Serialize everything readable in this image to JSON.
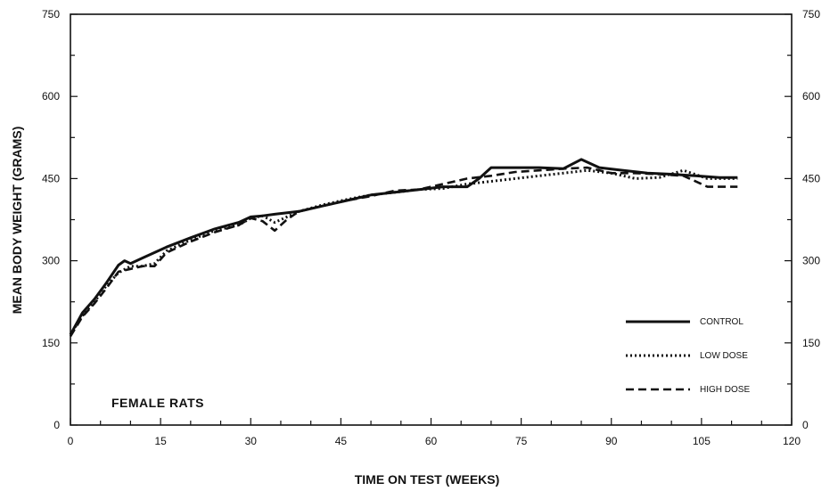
{
  "chart_data": {
    "type": "line",
    "xlabel": "TIME ON TEST (WEEKS)",
    "ylabel": "MEAN BODY WEIGHT (GRAMS)",
    "xlim": [
      0,
      120
    ],
    "ylim": [
      0,
      750
    ],
    "x_ticks": [
      "0",
      "15",
      "30",
      "45",
      "60",
      "75",
      "90",
      "105",
      "120"
    ],
    "y_ticks_left": [
      "0",
      "150",
      "300",
      "450",
      "600",
      "750"
    ],
    "y_ticks_right": [
      "0",
      "150",
      "300",
      "450",
      "600",
      "750"
    ],
    "annotation": "FEMALE RATS",
    "legend_position": "bottom-right",
    "grid": false,
    "series": [
      {
        "name": "CONTROL",
        "style": "solid",
        "x": [
          0,
          2,
          4,
          6,
          8,
          9,
          10,
          12,
          14,
          16,
          20,
          24,
          28,
          30,
          32,
          34,
          38,
          42,
          46,
          50,
          54,
          58,
          62,
          66,
          68,
          70,
          74,
          78,
          82,
          85,
          88,
          92,
          96,
          100,
          104,
          108,
          111
        ],
        "y": [
          165,
          205,
          230,
          260,
          292,
          300,
          295,
          305,
          315,
          325,
          342,
          358,
          370,
          380,
          382,
          385,
          390,
          400,
          410,
          420,
          425,
          430,
          435,
          435,
          450,
          470,
          470,
          470,
          468,
          485,
          470,
          465,
          460,
          458,
          455,
          452,
          452
        ]
      },
      {
        "name": "LOW DOSE",
        "style": "dotted",
        "x": [
          0,
          2,
          4,
          6,
          8,
          10,
          12,
          14,
          16,
          20,
          24,
          28,
          30,
          32,
          34,
          38,
          42,
          46,
          50,
          54,
          58,
          62,
          66,
          70,
          74,
          78,
          82,
          86,
          90,
          94,
          98,
          102,
          106,
          111
        ],
        "y": [
          165,
          200,
          225,
          255,
          278,
          290,
          290,
          295,
          318,
          338,
          355,
          365,
          378,
          382,
          370,
          390,
          402,
          412,
          420,
          425,
          430,
          432,
          440,
          445,
          450,
          455,
          460,
          465,
          460,
          450,
          452,
          465,
          450,
          450
        ]
      },
      {
        "name": "HIGH DOSE",
        "style": "dashed",
        "x": [
          0,
          2,
          4,
          6,
          8,
          10,
          12,
          14,
          16,
          20,
          24,
          28,
          30,
          32,
          34,
          36,
          38,
          42,
          46,
          50,
          54,
          58,
          62,
          66,
          70,
          74,
          78,
          82,
          86,
          90,
          94,
          98,
          102,
          106,
          111
        ],
        "y": [
          162,
          198,
          222,
          250,
          280,
          285,
          290,
          290,
          315,
          335,
          352,
          365,
          378,
          372,
          355,
          375,
          390,
          400,
          410,
          418,
          428,
          430,
          440,
          450,
          455,
          462,
          465,
          468,
          470,
          460,
          460,
          458,
          455,
          435,
          435
        ]
      }
    ]
  }
}
